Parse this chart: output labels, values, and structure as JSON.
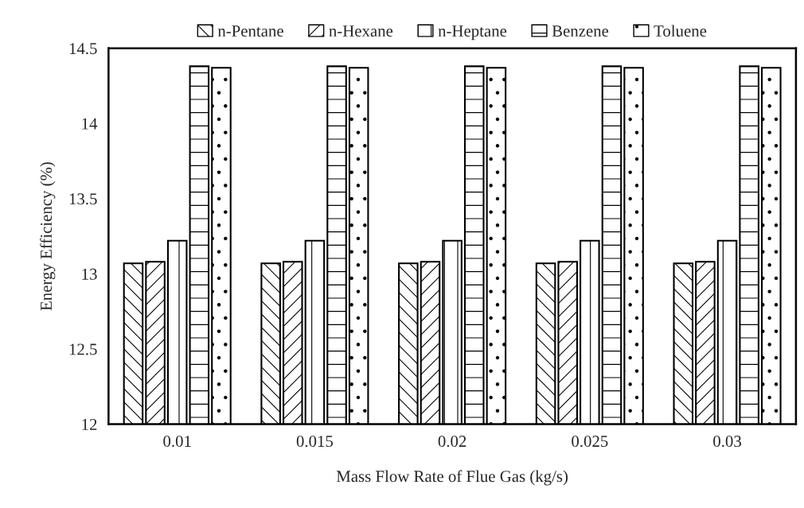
{
  "chart_data": {
    "type": "bar",
    "xlabel": "Mass Flow Rate of Flue Gas (kg/s)",
    "ylabel": "Energy Efficiency (%)",
    "categories": [
      "0.01",
      "0.015",
      "0.02",
      "0.025",
      "0.03"
    ],
    "series": [
      {
        "name": "n-Pentane",
        "color": "#000000",
        "values": [
          13.07,
          13.07,
          13.07,
          13.07,
          13.07
        ]
      },
      {
        "name": "n-Hexane",
        "color": "#000000",
        "values": [
          13.08,
          13.08,
          13.08,
          13.08,
          13.08
        ]
      },
      {
        "name": "n-Heptane",
        "color": "#000000",
        "values": [
          13.22,
          13.22,
          13.22,
          13.22,
          13.22
        ]
      },
      {
        "name": "Benzene",
        "color": "#000000",
        "values": [
          14.38,
          14.38,
          14.38,
          14.38,
          14.38
        ]
      },
      {
        "name": "Toluene",
        "color": "#000000",
        "values": [
          14.37,
          14.37,
          14.37,
          14.37,
          14.37
        ]
      }
    ],
    "ylim": [
      12,
      14.5
    ],
    "yticks": [
      12,
      12.5,
      13,
      13.5,
      14,
      14.5
    ],
    "grid": false,
    "legend": "top"
  }
}
